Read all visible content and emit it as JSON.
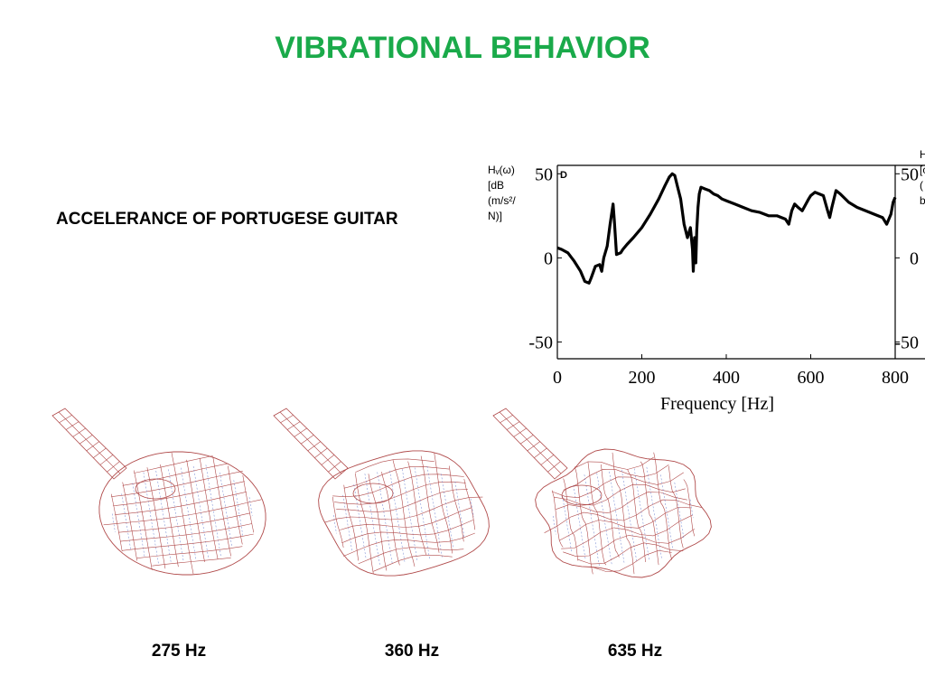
{
  "slide": {
    "title": "VIBRATIONAL BEHAVIOR",
    "subtitle": "ACCELERANCE OF PORTUGESE GUITAR"
  },
  "y_axis_label": {
    "line1": "Hᵥ(ω)",
    "line2": "[dB",
    "line3": "(m/s²/",
    "line4": "N)]"
  },
  "right_clipped_label": {
    "line1": "H",
    "line2": "[c",
    "line3": "(",
    "line4": "b"
  },
  "chart_data": {
    "type": "line",
    "panel_label": "D",
    "xlabel": "Frequency [Hz]",
    "x_ticks": [
      0,
      200,
      400,
      600,
      800
    ],
    "y_ticks": [
      50,
      0,
      -50
    ],
    "xlim": [
      0,
      800
    ],
    "ylim": [
      -60,
      55
    ],
    "grid": false,
    "color": "#000000",
    "series": [
      {
        "x": [
          0,
          10,
          25,
          40,
          55,
          65,
          75,
          80,
          90,
          100,
          105,
          110,
          118,
          125,
          132,
          135,
          140,
          150,
          155,
          165,
          180,
          200,
          220,
          240,
          255,
          265,
          272,
          278,
          285,
          292,
          300,
          308,
          315,
          320,
          322,
          325,
          328,
          330,
          333,
          336,
          340,
          350,
          360,
          370,
          380,
          390,
          400,
          420,
          440,
          460,
          480,
          500,
          520,
          540,
          548,
          555,
          562,
          570,
          580,
          595,
          600,
          610,
          620,
          630,
          640,
          645,
          650,
          660,
          670,
          690,
          710,
          730,
          750,
          770,
          780,
          790,
          795,
          800
        ],
        "y": [
          6,
          5,
          3,
          -2,
          -8,
          -14,
          -15,
          -12,
          -5,
          -4,
          -8,
          0,
          7,
          20,
          32,
          22,
          2,
          3,
          5,
          8,
          12,
          18,
          26,
          35,
          43,
          48,
          50,
          49,
          42,
          35,
          20,
          12,
          18,
          5,
          -8,
          12,
          -3,
          16,
          30,
          38,
          42,
          41,
          40,
          38,
          37,
          35,
          34,
          32,
          30,
          28,
          27,
          25,
          25,
          23,
          20,
          28,
          32,
          30,
          28,
          35,
          37,
          39,
          38,
          37,
          28,
          24,
          30,
          40,
          38,
          33,
          30,
          28,
          26,
          24,
          20,
          26,
          33,
          36
        ]
      }
    ]
  },
  "modes": [
    {
      "label": "275 Hz"
    },
    {
      "label": "360 Hz"
    },
    {
      "label": "635 Hz"
    }
  ]
}
